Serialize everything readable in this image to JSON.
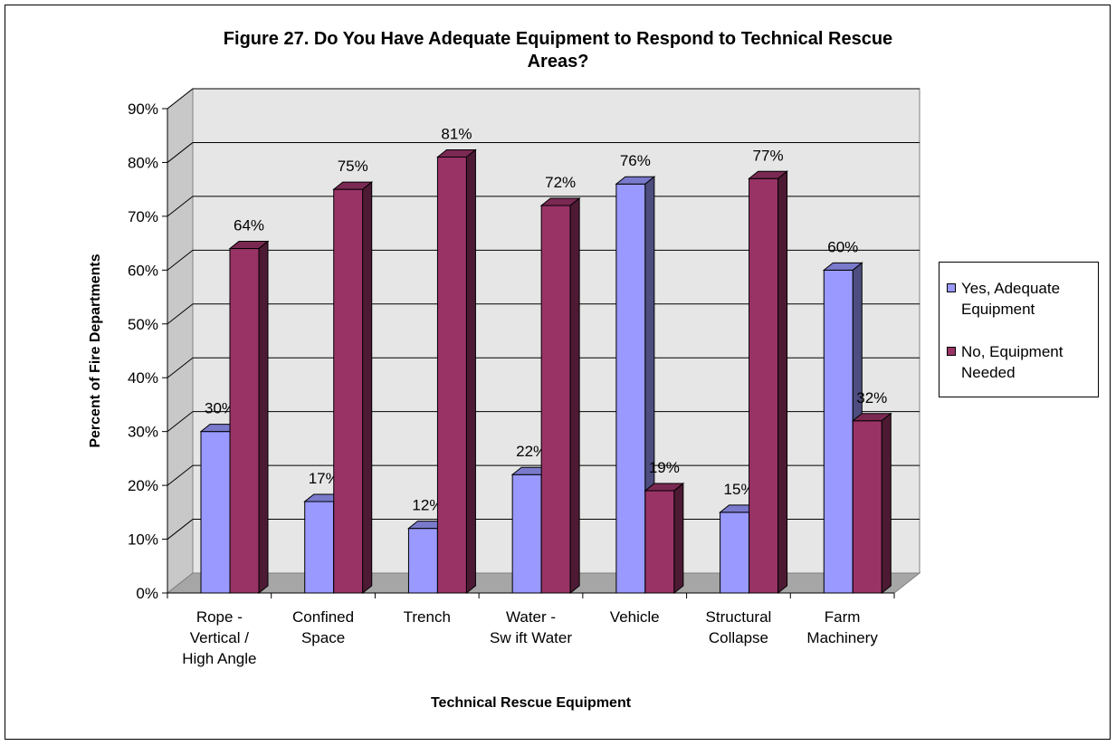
{
  "chart_data": {
    "type": "bar",
    "title_line1": "Figure 27. Do You Have Adequate Equipment to Respond to Technical Rescue",
    "title_line2": "Areas?",
    "xlabel": "Technical Rescue Equipment",
    "ylabel": "Percent of Fire Departments",
    "ylim": [
      0,
      90
    ],
    "yticks": [
      "0%",
      "10%",
      "20%",
      "30%",
      "40%",
      "50%",
      "60%",
      "70%",
      "80%",
      "90%"
    ],
    "categories": [
      [
        "Rope -",
        "Vertical /",
        "High Angle"
      ],
      [
        "Confined",
        "Space"
      ],
      [
        "Trench"
      ],
      [
        "Water -",
        "Sw ift Water"
      ],
      [
        "Vehicle"
      ],
      [
        "Structural",
        "Collapse"
      ],
      [
        "Farm",
        "Machinery"
      ]
    ],
    "series": [
      {
        "name_line1": "Yes, Adequate",
        "name_line2": "Equipment",
        "color": "#9999FF",
        "values": [
          30,
          17,
          12,
          22,
          76,
          15,
          60
        ],
        "labels": [
          "30%",
          "17%",
          "12%",
          "22%",
          "76%",
          "15%",
          "60%"
        ]
      },
      {
        "name_line1": "No, Equipment",
        "name_line2": "Needed",
        "color": "#993366",
        "values": [
          64,
          75,
          81,
          72,
          19,
          77,
          32
        ],
        "labels": [
          "64%",
          "75%",
          "81%",
          "72%",
          "19%",
          "77%",
          "32%"
        ]
      }
    ],
    "grid": true,
    "legend_position": "right"
  }
}
